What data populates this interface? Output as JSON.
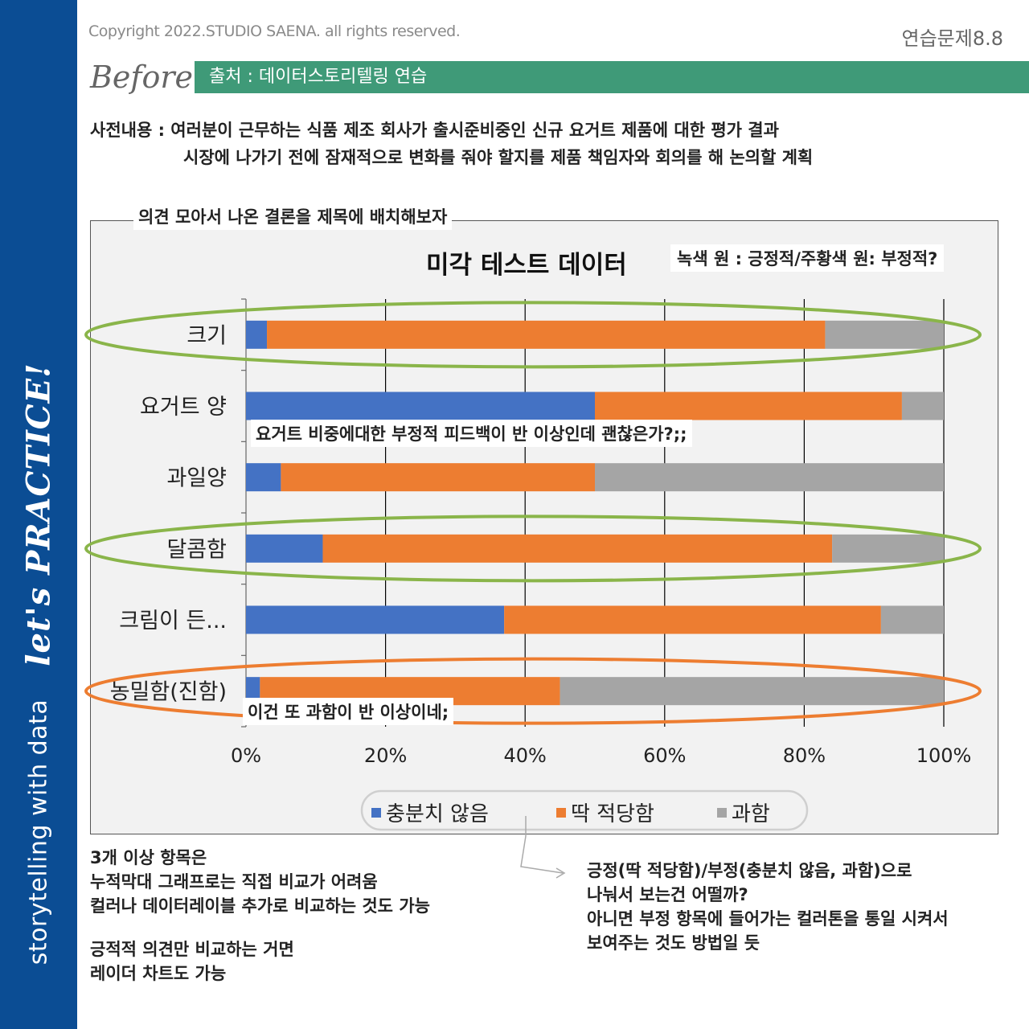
{
  "header": {
    "copyright": "Copyright 2022.STUDIO SAENA. all rights reserved.",
    "exercise": "연습문제8.8",
    "before": "Before",
    "source": "출처 : 데이터스토리텔링 연습"
  },
  "sidebar": {
    "brand": "storytelling with data",
    "tagline": "let's PRACTICE!"
  },
  "pre_content": {
    "line1": "사전내용 : 여러분이 근무하는 식품 제조 회사가 출시준비중인 신규 요거트 제품에 대한 평가 결과",
    "line2": "시장에 나가기 전에 잠재적으로 변화를 줘야 할지를 제품 책임자와 회의를 해 논의할 계획"
  },
  "annotations": {
    "opinion_label": "의견 모아서 나온 결론을 제목에 배치해보자",
    "title_note": "녹색 원 : 긍정적/주황색 원: 부정적?",
    "yogurt_note": "요거트 비중에대한 부정적 피드백이 반 이상인데 괜찮은가?;;",
    "thick_note": "이건 또 과함이 반 이상이네;"
  },
  "chart_data": {
    "type": "bar",
    "orientation": "horizontal",
    "stacked": "percent",
    "title": "미각 테스트 데이터",
    "categories": [
      "크기",
      "요거트 양",
      "과일양",
      "달콤함",
      "크림이 든...",
      "농밀함(진함)"
    ],
    "series": [
      {
        "name": "충분치 않음",
        "color": "#4472c4",
        "values": [
          3,
          50,
          5,
          11,
          37,
          2
        ]
      },
      {
        "name": "딱 적당함",
        "color": "#ed7d31",
        "values": [
          80,
          44,
          45,
          73,
          54,
          43
        ]
      },
      {
        "name": "과함",
        "color": "#a5a5a5",
        "values": [
          17,
          6,
          50,
          16,
          9,
          55
        ]
      }
    ],
    "xlim": [
      0,
      100
    ],
    "xticks": [
      "0%",
      "20%",
      "40%",
      "60%",
      "80%",
      "100%"
    ],
    "grid": true,
    "legend": "bottom",
    "circled": [
      {
        "category": "크기",
        "color": "#8ab54a"
      },
      {
        "category": "달콤함",
        "color": "#8ab54a"
      },
      {
        "category": "농밀함(진함)",
        "color": "#ed7d31"
      }
    ]
  },
  "bottom_notes": {
    "left": [
      "3개 이상 항목은",
      "누적막대  그래프로는 직접 비교가 어려움",
      "컬러나 데이터레이블 추가로 비교하는 것도 가능"
    ],
    "left2": [
      "긍적적 의견만 비교하는 거면",
      "레이더 차트도 가능"
    ],
    "right": [
      "긍정(딱 적당함)/부정(충분치 않음, 과함)으로",
      "나눠서 보는건 어떨까?",
      "아니면 부정 항목에 들어가는 컬러톤을 통일 시켜서",
      "보여주는 것도 방법일 듯"
    ]
  },
  "colors": {
    "sidebar": "#0b4d94",
    "source_bar": "#3f9a78",
    "green_circle": "#8ab54a",
    "orange_circle": "#ed7d31"
  }
}
